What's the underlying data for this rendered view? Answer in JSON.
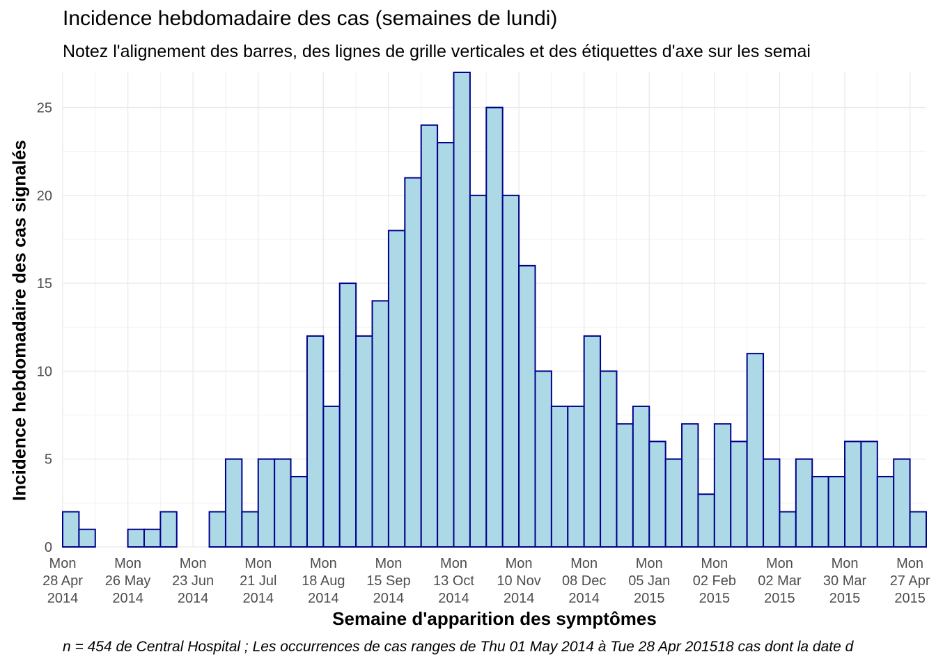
{
  "chart_data": {
    "type": "bar",
    "title": "Incidence hebdomadaire des cas (semaines de lundi)",
    "subtitle": "Notez l'alignement des barres, des lignes de grille verticales et des étiquettes d'axe sur les semai",
    "xlabel": "Semaine d'apparition des symptômes",
    "ylabel": "Incidence hebdomadaire des cas signalés",
    "caption": "n = 454 de Central Hospital ; Les occurrences de cas ranges de Thu 01 May 2014 à Tue 28 Apr 201518 cas dont la date d",
    "ylim": [
      0,
      27
    ],
    "yticks": [
      0,
      5,
      10,
      15,
      20,
      25
    ],
    "grid": true,
    "bar_fill": "#add8e6",
    "bar_stroke": "#00008b",
    "x_start": "2014-04-28",
    "x_interval": "week",
    "values": [
      2,
      1,
      0,
      0,
      1,
      1,
      2,
      0,
      0,
      2,
      5,
      2,
      5,
      5,
      4,
      12,
      8,
      15,
      12,
      14,
      18,
      21,
      24,
      23,
      27,
      20,
      25,
      20,
      16,
      10,
      8,
      8,
      12,
      10,
      7,
      8,
      6,
      5,
      7,
      3,
      7,
      6,
      11,
      5,
      2,
      5,
      4,
      4,
      6,
      6,
      4,
      5,
      2
    ],
    "xtick_labels": [
      [
        "Mon",
        "28 Apr",
        "2014"
      ],
      [
        "Mon",
        "26 May",
        "2014"
      ],
      [
        "Mon",
        "23 Jun",
        "2014"
      ],
      [
        "Mon",
        "21 Jul",
        "2014"
      ],
      [
        "Mon",
        "18 Aug",
        "2014"
      ],
      [
        "Mon",
        "15 Sep",
        "2014"
      ],
      [
        "Mon",
        "13 Oct",
        "2014"
      ],
      [
        "Mon",
        "10 Nov",
        "2014"
      ],
      [
        "Mon",
        "08 Dec",
        "2014"
      ],
      [
        "Mon",
        "05 Jan",
        "2015"
      ],
      [
        "Mon",
        "02 Feb",
        "2015"
      ],
      [
        "Mon",
        "02 Mar",
        "2015"
      ],
      [
        "Mon",
        "30 Mar",
        "2015"
      ],
      [
        "Mon",
        "27 Apr",
        "2015"
      ]
    ]
  }
}
